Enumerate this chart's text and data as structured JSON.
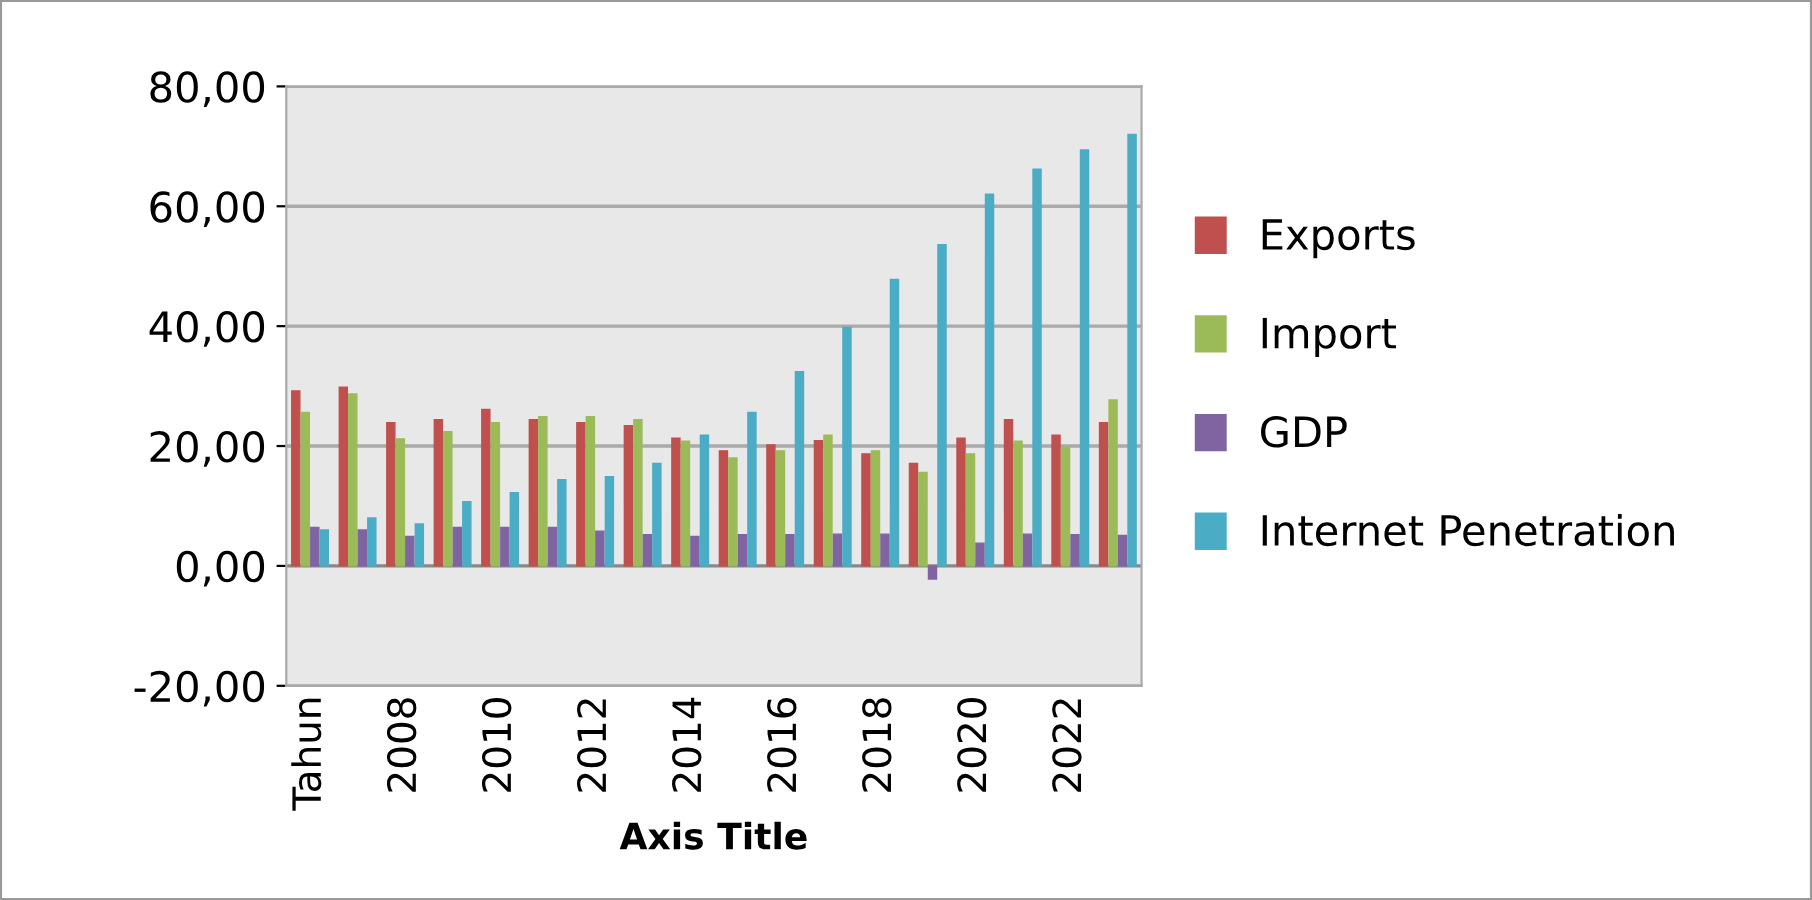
{
  "chart_data": {
    "type": "bar",
    "xlabel": "Axis Title",
    "categories": [
      "Tahun",
      null,
      "2008",
      null,
      "2010",
      null,
      "2012",
      null,
      "2014",
      null,
      "2016",
      null,
      "2018",
      null,
      "2020",
      null,
      "2022",
      null
    ],
    "series": [
      {
        "name": "Exports",
        "color": "#c0504d",
        "values": [
          29.2,
          29.8,
          23.9,
          24.4,
          26.1,
          24.4,
          23.9,
          23.4,
          21.3,
          19.2,
          20.2,
          20.9,
          18.7,
          17.1,
          21.3,
          24.4,
          21.8,
          23.9
        ]
      },
      {
        "name": "Import",
        "color": "#9bbb59",
        "values": [
          25.6,
          28.7,
          21.2,
          22.4,
          23.9,
          24.9,
          24.9,
          24.4,
          20.8,
          18.0,
          19.2,
          21.8,
          19.2,
          15.6,
          18.7,
          20.8,
          19.8,
          27.7
        ]
      },
      {
        "name": "GDP",
        "color": "#8064a2",
        "values": [
          6.4,
          6.0,
          4.9,
          6.4,
          6.4,
          6.4,
          5.8,
          5.2,
          4.9,
          5.2,
          5.2,
          5.3,
          5.3,
          -2.2,
          3.8,
          5.3,
          5.2,
          5.1
        ]
      },
      {
        "name": "Internet Penetration",
        "color": "#4bacc6",
        "values": [
          6.0,
          8.0,
          7.0,
          10.7,
          12.2,
          14.4,
          14.9,
          17.1,
          21.8,
          25.6,
          32.4,
          39.8,
          47.8,
          53.6,
          62.0,
          66.2,
          69.4,
          72.0
        ]
      }
    ],
    "ylim": [
      -20,
      80
    ],
    "yticks": [
      {
        "value": -20,
        "label": "-20,00"
      },
      {
        "value": 0,
        "label": "0,00"
      },
      {
        "value": 20,
        "label": "20,00"
      },
      {
        "value": 40,
        "label": "40,00"
      },
      {
        "value": 60,
        "label": "60,00"
      },
      {
        "value": 80,
        "label": "80,00"
      }
    ],
    "grid": "y",
    "legend": "right"
  }
}
